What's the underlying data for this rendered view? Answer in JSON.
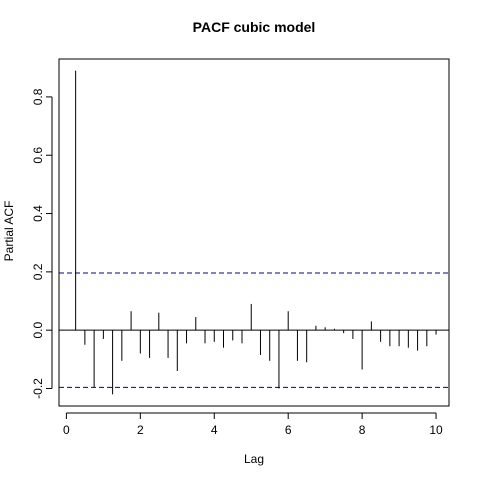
{
  "chart_data": {
    "type": "bar",
    "title": "PACF cubic model",
    "xlabel": "Lag",
    "ylabel": "Partial ACF",
    "xlim": [
      -0.2,
      10.35
    ],
    "ylim": [
      -0.26,
      0.93
    ],
    "x_ticks": [
      0,
      2,
      4,
      6,
      8,
      10
    ],
    "x_tick_labels": [
      "0",
      "2",
      "4",
      "6",
      "8",
      "10"
    ],
    "y_ticks": [
      -0.2,
      0.0,
      0.2,
      0.4,
      0.6,
      0.8
    ],
    "y_tick_labels": [
      "-0.2",
      "0.0",
      "0.2",
      "0.4",
      "0.6",
      "0.8"
    ],
    "confidence_bound": 0.196,
    "bound_color": "#00008b",
    "lags": [
      0.25,
      0.5,
      0.75,
      1.0,
      1.25,
      1.5,
      1.75,
      2.0,
      2.25,
      2.5,
      2.75,
      3.0,
      3.25,
      3.5,
      3.75,
      4.0,
      4.25,
      4.5,
      4.75,
      5.0,
      5.25,
      5.5,
      5.75,
      6.0,
      6.25,
      6.5,
      6.75,
      7.0,
      7.25,
      7.5,
      7.75,
      8.0,
      8.25,
      8.5,
      8.75,
      9.0,
      9.25,
      9.5,
      9.75,
      10.0
    ],
    "values": [
      0.89,
      -0.05,
      -0.195,
      -0.03,
      -0.22,
      -0.105,
      0.065,
      -0.08,
      -0.095,
      0.06,
      -0.095,
      -0.14,
      -0.045,
      0.045,
      -0.045,
      -0.04,
      -0.06,
      -0.035,
      -0.045,
      0.09,
      -0.085,
      -0.105,
      -0.2,
      0.065,
      -0.105,
      -0.11,
      0.015,
      0.01,
      0.005,
      -0.01,
      -0.03,
      -0.135,
      0.03,
      -0.04,
      -0.055,
      -0.055,
      -0.06,
      -0.07,
      -0.055,
      -0.015
    ]
  }
}
